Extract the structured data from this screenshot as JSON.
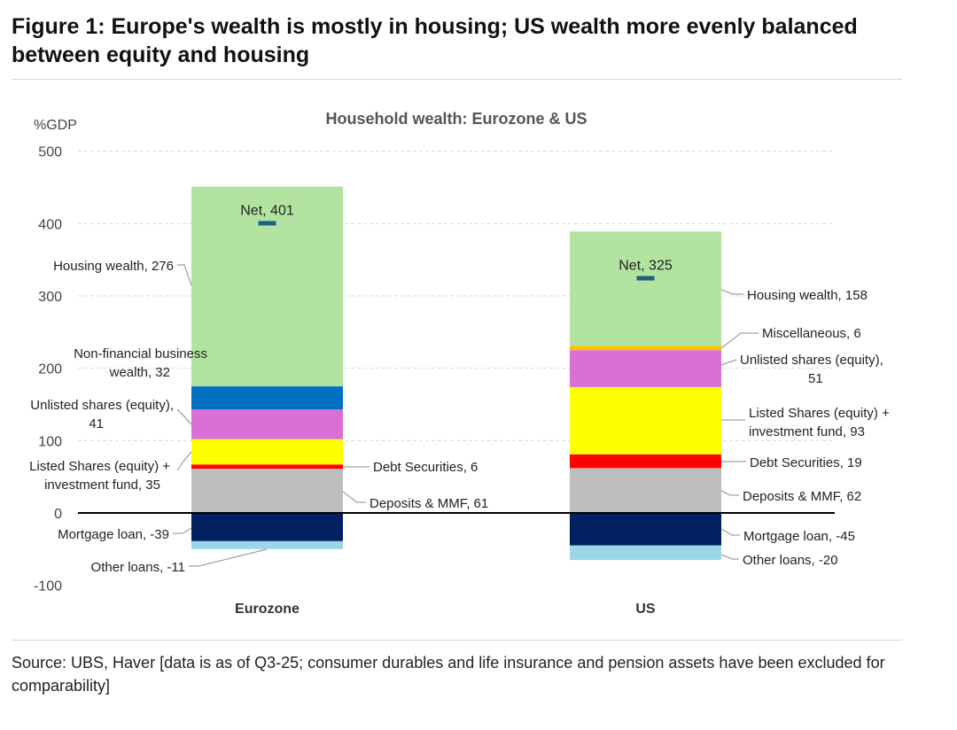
{
  "figure": {
    "title": "Figure 1: Europe's wealth is mostly in housing; US wealth more evenly balanced between equity and housing",
    "source": "Source: UBS, Haver [data is as of Q3-25; consumer durables and life insurance and pension assets have been excluded for comparability]"
  },
  "chart_data": {
    "type": "bar",
    "stacked": true,
    "title": "Household wealth: Eurozone & US",
    "ylabel": "%GDP",
    "xlabel": "",
    "ylim": [
      -100,
      500
    ],
    "yticks": [
      -100,
      0,
      100,
      200,
      300,
      400,
      500
    ],
    "grid": true,
    "categories": [
      "Eurozone",
      "US"
    ],
    "series": [
      {
        "name": "Deposits & MMF",
        "color": "#bdbdbd",
        "values": [
          61,
          62
        ],
        "labels": [
          "Deposits & MMF, 61",
          "Deposits & MMF, 62"
        ]
      },
      {
        "name": "Debt Securities",
        "color": "#ff0000",
        "values": [
          6,
          19
        ],
        "labels": [
          "Debt Securities, 6",
          "Debt Securities, 19"
        ]
      },
      {
        "name": "Listed Shares (equity) + investment fund",
        "color": "#ffff00",
        "values": [
          35,
          93
        ],
        "labels": [
          [
            "Listed Shares (equity) +",
            "investment fund, 35"
          ],
          [
            "Listed Shares (equity) +",
            "investment fund, 93"
          ]
        ]
      },
      {
        "name": "Unlisted shares (equity)",
        "color": "#da70d6",
        "values": [
          41,
          51
        ],
        "labels": [
          [
            "Unlisted shares (equity),",
            "41"
          ],
          [
            "Unlisted shares (equity),",
            "51"
          ]
        ]
      },
      {
        "name": "Non-financial business wealth",
        "color": "#0070c0",
        "values": [
          32,
          0
        ],
        "labels": [
          [
            "Non-financial business",
            "wealth, 32"
          ],
          null
        ]
      },
      {
        "name": "Miscellaneous",
        "color": "#ffc000",
        "values": [
          0,
          6
        ],
        "labels": [
          null,
          "Miscellaneous, 6"
        ]
      },
      {
        "name": "Housing wealth",
        "color": "#b3e3a0",
        "values": [
          276,
          158
        ],
        "labels": [
          "Housing wealth, 276",
          "Housing wealth, 158"
        ]
      },
      {
        "name": "Mortgage loan",
        "color": "#002060",
        "values": [
          -39,
          -45
        ],
        "labels": [
          "Mortgage loan, -39",
          "Mortgage loan, -45"
        ]
      },
      {
        "name": "Other loans",
        "color": "#9bd7e8",
        "values": [
          -11,
          -20
        ],
        "labels": [
          "Other loans, -11",
          "Other loans, -20"
        ]
      }
    ],
    "net": {
      "values": [
        401,
        325
      ],
      "labels": [
        "Net, 401",
        "Net, 325"
      ],
      "color": "#1f5f7f"
    }
  }
}
